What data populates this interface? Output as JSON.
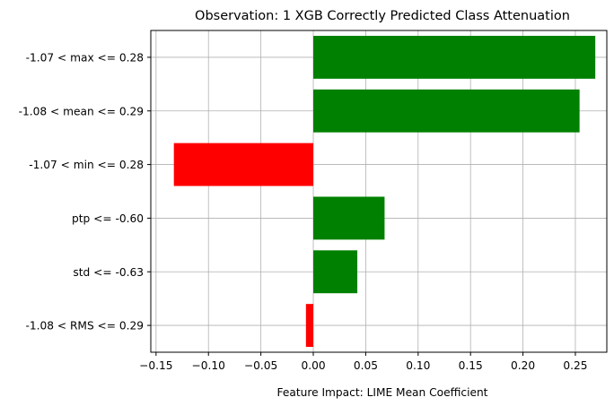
{
  "chart_data": {
    "type": "bar",
    "orientation": "horizontal",
    "title": "Observation: 1 XGB Correctly Predicted Class Attenuation",
    "xlabel": "Feature Impact: LIME Mean Coefficient",
    "ylabel": "",
    "xlim": [
      -0.155,
      0.28
    ],
    "xticks": [
      -0.15,
      -0.1,
      -0.05,
      0.0,
      0.05,
      0.1,
      0.15,
      0.2,
      0.25
    ],
    "xtick_labels": [
      "−0.15",
      "−0.10",
      "−0.05",
      "0.00",
      "0.05",
      "0.10",
      "0.15",
      "0.20",
      "0.25"
    ],
    "grid": true,
    "categories": [
      "-1.07 < max <= 0.28",
      "-1.08 < mean <= 0.29",
      "-1.07 < min <= 0.28",
      "ptp <= -0.60",
      "std <= -0.63",
      "-1.08 < RMS <= 0.29"
    ],
    "values": [
      0.269,
      0.254,
      -0.133,
      0.068,
      0.042,
      -0.007
    ],
    "colors": {
      "positive": "#008000",
      "negative": "#ff0000",
      "grid": "#b0b0b0"
    }
  }
}
